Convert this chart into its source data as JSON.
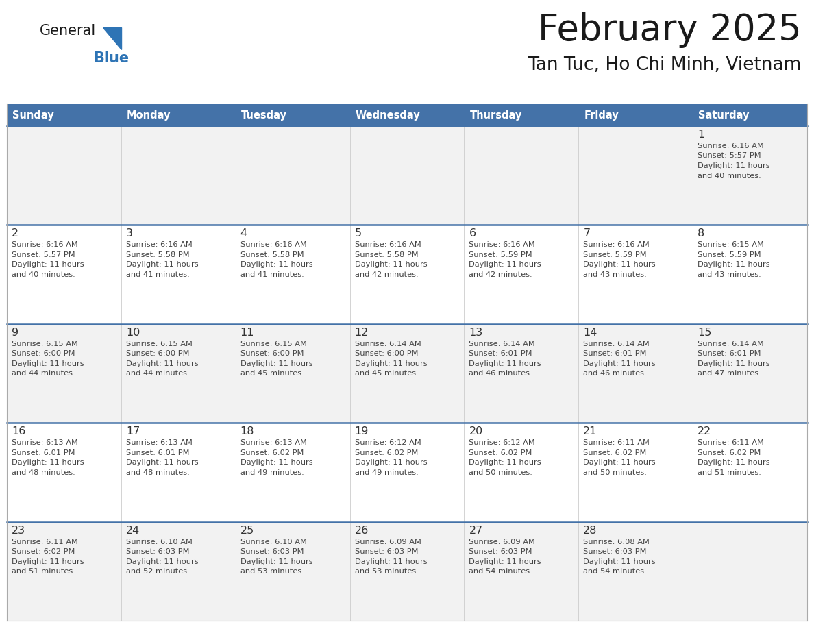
{
  "title": "February 2025",
  "subtitle": "Tan Tuc, Ho Chi Minh, Vietnam",
  "days_of_week": [
    "Sunday",
    "Monday",
    "Tuesday",
    "Wednesday",
    "Thursday",
    "Friday",
    "Saturday"
  ],
  "header_bg": "#4472A8",
  "header_text": "#FFFFFF",
  "cell_bg_odd": "#F2F2F2",
  "cell_bg_even": "#FFFFFF",
  "border_color": "#4472A8",
  "text_color": "#444444",
  "day_num_color": "#333333",
  "logo_general_color": "#1a1a1a",
  "logo_blue_color": "#2E74B5",
  "calendar_data": [
    {
      "day": 1,
      "col": 6,
      "row": 0,
      "sunrise": "6:16 AM",
      "sunset": "5:57 PM",
      "daylight_hours": 11,
      "daylight_minutes": 40
    },
    {
      "day": 2,
      "col": 0,
      "row": 1,
      "sunrise": "6:16 AM",
      "sunset": "5:57 PM",
      "daylight_hours": 11,
      "daylight_minutes": 40
    },
    {
      "day": 3,
      "col": 1,
      "row": 1,
      "sunrise": "6:16 AM",
      "sunset": "5:58 PM",
      "daylight_hours": 11,
      "daylight_minutes": 41
    },
    {
      "day": 4,
      "col": 2,
      "row": 1,
      "sunrise": "6:16 AM",
      "sunset": "5:58 PM",
      "daylight_hours": 11,
      "daylight_minutes": 41
    },
    {
      "day": 5,
      "col": 3,
      "row": 1,
      "sunrise": "6:16 AM",
      "sunset": "5:58 PM",
      "daylight_hours": 11,
      "daylight_minutes": 42
    },
    {
      "day": 6,
      "col": 4,
      "row": 1,
      "sunrise": "6:16 AM",
      "sunset": "5:59 PM",
      "daylight_hours": 11,
      "daylight_minutes": 42
    },
    {
      "day": 7,
      "col": 5,
      "row": 1,
      "sunrise": "6:16 AM",
      "sunset": "5:59 PM",
      "daylight_hours": 11,
      "daylight_minutes": 43
    },
    {
      "day": 8,
      "col": 6,
      "row": 1,
      "sunrise": "6:15 AM",
      "sunset": "5:59 PM",
      "daylight_hours": 11,
      "daylight_minutes": 43
    },
    {
      "day": 9,
      "col": 0,
      "row": 2,
      "sunrise": "6:15 AM",
      "sunset": "6:00 PM",
      "daylight_hours": 11,
      "daylight_minutes": 44
    },
    {
      "day": 10,
      "col": 1,
      "row": 2,
      "sunrise": "6:15 AM",
      "sunset": "6:00 PM",
      "daylight_hours": 11,
      "daylight_minutes": 44
    },
    {
      "day": 11,
      "col": 2,
      "row": 2,
      "sunrise": "6:15 AM",
      "sunset": "6:00 PM",
      "daylight_hours": 11,
      "daylight_minutes": 45
    },
    {
      "day": 12,
      "col": 3,
      "row": 2,
      "sunrise": "6:14 AM",
      "sunset": "6:00 PM",
      "daylight_hours": 11,
      "daylight_minutes": 45
    },
    {
      "day": 13,
      "col": 4,
      "row": 2,
      "sunrise": "6:14 AM",
      "sunset": "6:01 PM",
      "daylight_hours": 11,
      "daylight_minutes": 46
    },
    {
      "day": 14,
      "col": 5,
      "row": 2,
      "sunrise": "6:14 AM",
      "sunset": "6:01 PM",
      "daylight_hours": 11,
      "daylight_minutes": 46
    },
    {
      "day": 15,
      "col": 6,
      "row": 2,
      "sunrise": "6:14 AM",
      "sunset": "6:01 PM",
      "daylight_hours": 11,
      "daylight_minutes": 47
    },
    {
      "day": 16,
      "col": 0,
      "row": 3,
      "sunrise": "6:13 AM",
      "sunset": "6:01 PM",
      "daylight_hours": 11,
      "daylight_minutes": 48
    },
    {
      "day": 17,
      "col": 1,
      "row": 3,
      "sunrise": "6:13 AM",
      "sunset": "6:01 PM",
      "daylight_hours": 11,
      "daylight_minutes": 48
    },
    {
      "day": 18,
      "col": 2,
      "row": 3,
      "sunrise": "6:13 AM",
      "sunset": "6:02 PM",
      "daylight_hours": 11,
      "daylight_minutes": 49
    },
    {
      "day": 19,
      "col": 3,
      "row": 3,
      "sunrise": "6:12 AM",
      "sunset": "6:02 PM",
      "daylight_hours": 11,
      "daylight_minutes": 49
    },
    {
      "day": 20,
      "col": 4,
      "row": 3,
      "sunrise": "6:12 AM",
      "sunset": "6:02 PM",
      "daylight_hours": 11,
      "daylight_minutes": 50
    },
    {
      "day": 21,
      "col": 5,
      "row": 3,
      "sunrise": "6:11 AM",
      "sunset": "6:02 PM",
      "daylight_hours": 11,
      "daylight_minutes": 50
    },
    {
      "day": 22,
      "col": 6,
      "row": 3,
      "sunrise": "6:11 AM",
      "sunset": "6:02 PM",
      "daylight_hours": 11,
      "daylight_minutes": 51
    },
    {
      "day": 23,
      "col": 0,
      "row": 4,
      "sunrise": "6:11 AM",
      "sunset": "6:02 PM",
      "daylight_hours": 11,
      "daylight_minutes": 51
    },
    {
      "day": 24,
      "col": 1,
      "row": 4,
      "sunrise": "6:10 AM",
      "sunset": "6:03 PM",
      "daylight_hours": 11,
      "daylight_minutes": 52
    },
    {
      "day": 25,
      "col": 2,
      "row": 4,
      "sunrise": "6:10 AM",
      "sunset": "6:03 PM",
      "daylight_hours": 11,
      "daylight_minutes": 53
    },
    {
      "day": 26,
      "col": 3,
      "row": 4,
      "sunrise": "6:09 AM",
      "sunset": "6:03 PM",
      "daylight_hours": 11,
      "daylight_minutes": 53
    },
    {
      "day": 27,
      "col": 4,
      "row": 4,
      "sunrise": "6:09 AM",
      "sunset": "6:03 PM",
      "daylight_hours": 11,
      "daylight_minutes": 54
    },
    {
      "day": 28,
      "col": 5,
      "row": 4,
      "sunrise": "6:08 AM",
      "sunset": "6:03 PM",
      "daylight_hours": 11,
      "daylight_minutes": 54
    }
  ]
}
